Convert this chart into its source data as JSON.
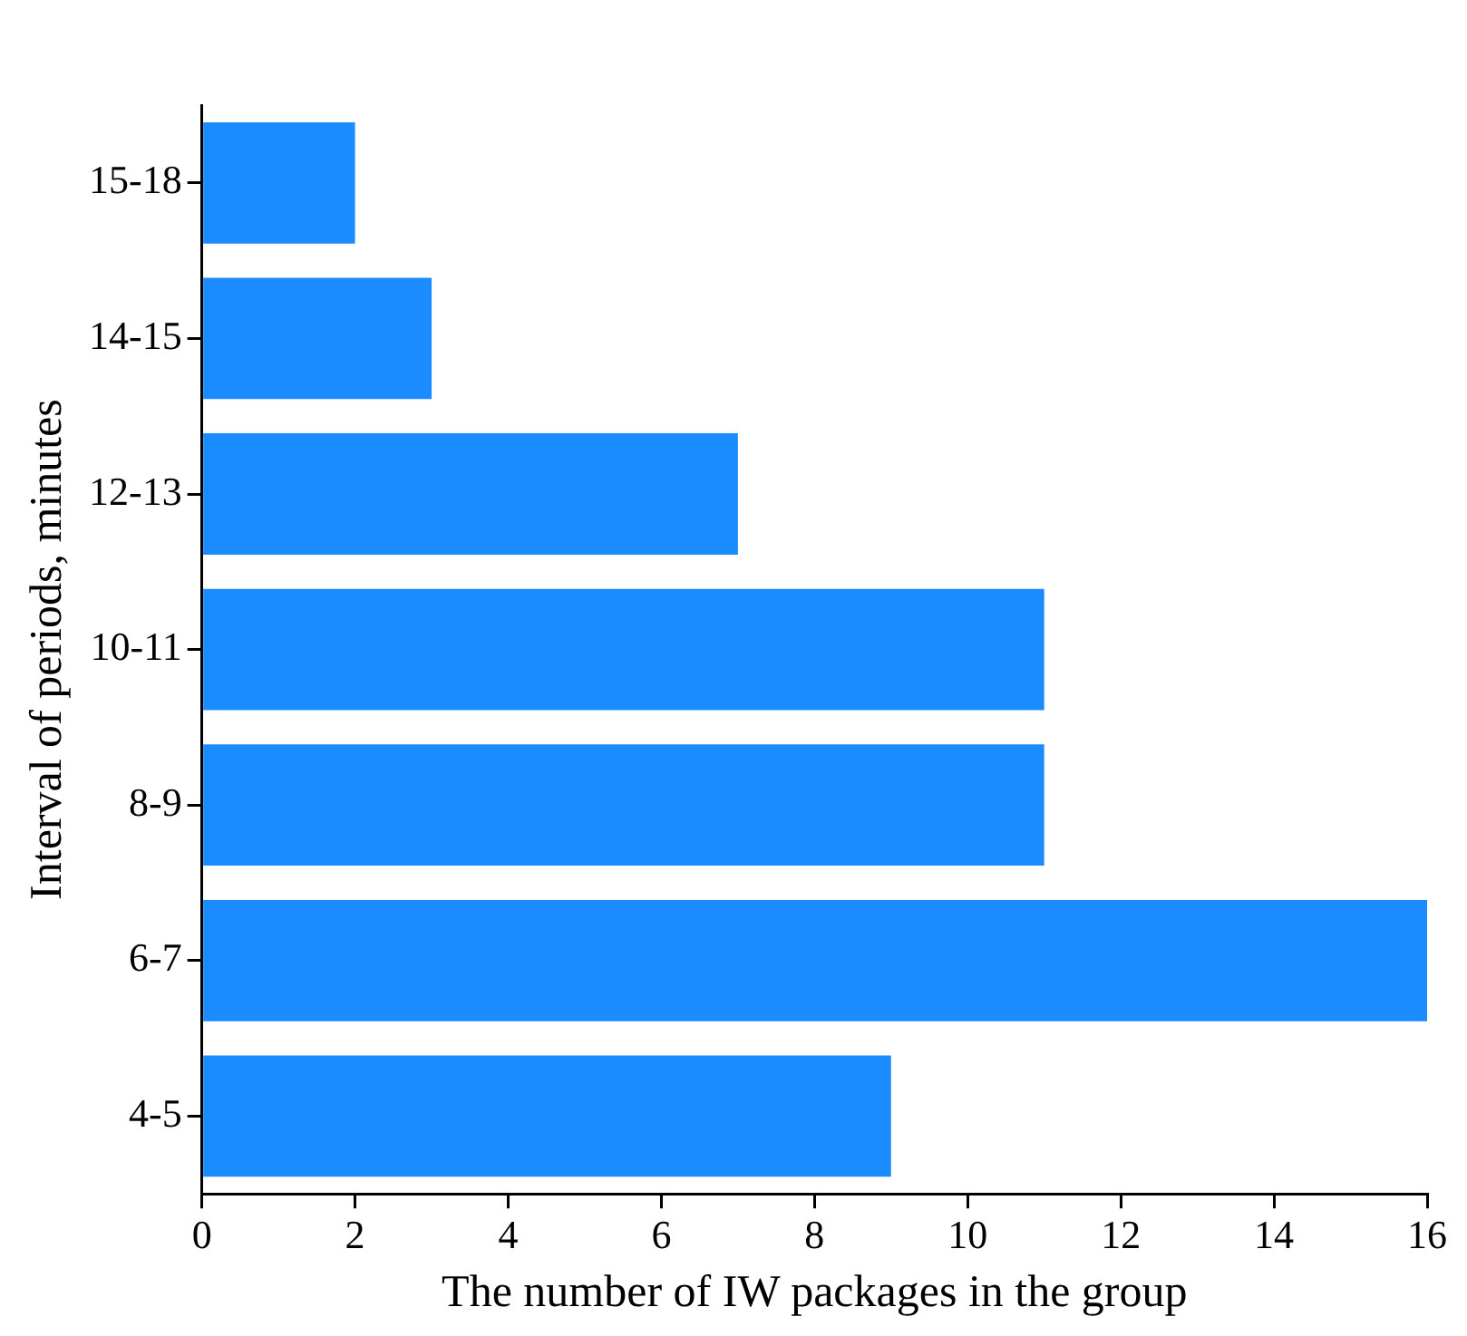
{
  "chart_data": {
    "type": "bar",
    "orientation": "horizontal",
    "xlabel": "The number of IW packages in the group",
    "ylabel": "Interval of periods, minutes",
    "categories": [
      "15-18",
      "14-15",
      "12-13",
      "10-11",
      "8-9",
      "6-7",
      "4-5"
    ],
    "values": [
      2,
      3,
      7,
      11,
      11,
      16,
      9
    ],
    "color": "#1a8cff",
    "xlim": [
      0,
      16
    ],
    "xticks": [
      0,
      2,
      4,
      6,
      8,
      10,
      12,
      14,
      16
    ],
    "grid": false,
    "legend": false
  }
}
